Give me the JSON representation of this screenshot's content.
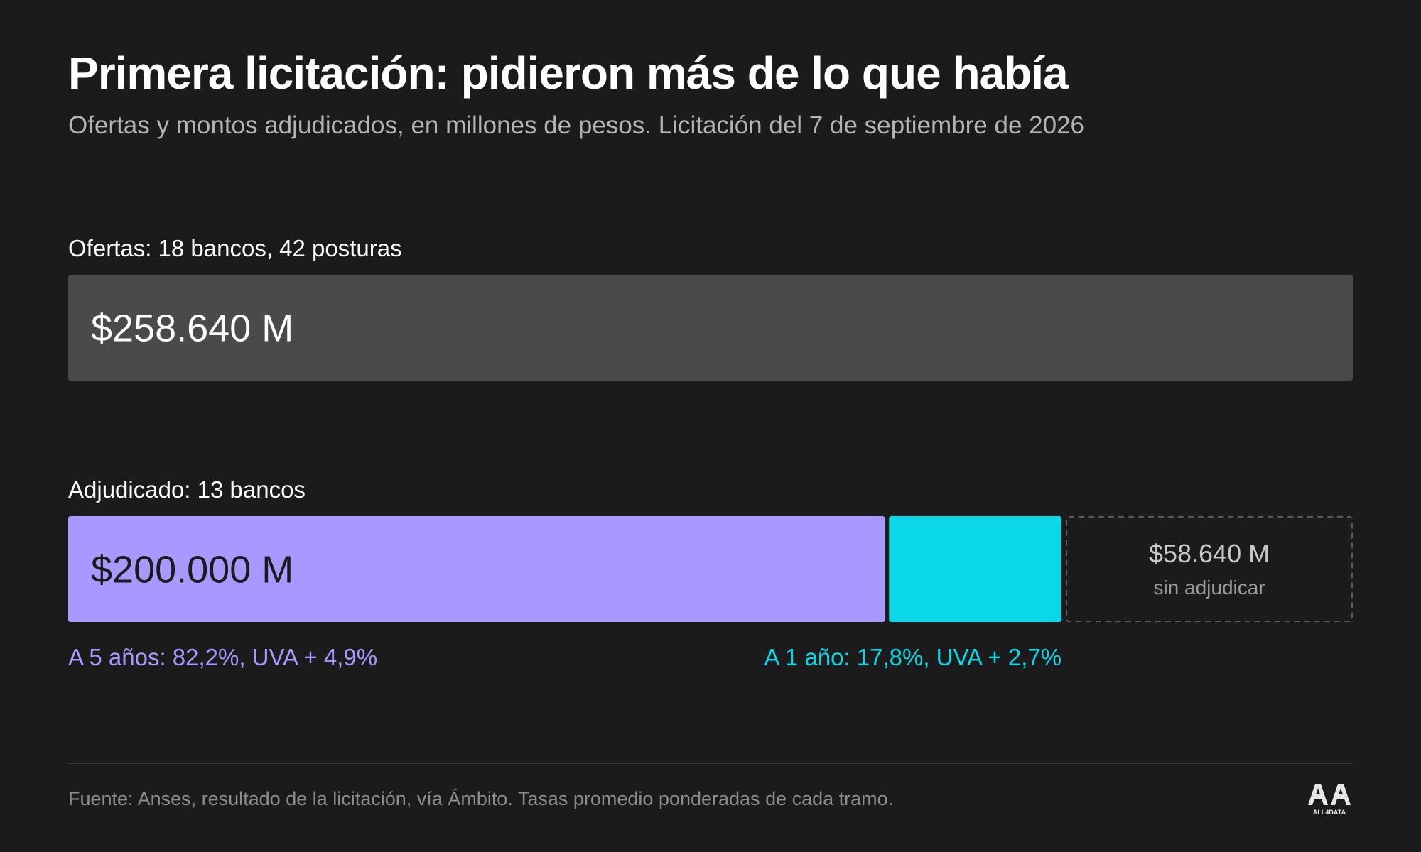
{
  "title": "Primera licitación: pidieron más de lo que había",
  "subtitle": "Ofertas y montos adjudicados, en millones de pesos. Licitación del 7 de septiembre de 2026",
  "chart_data": {
    "type": "bar",
    "title": "Primera licitación: pidieron más de lo que había",
    "subtitle": "Ofertas y montos adjudicados, en millones de pesos. Licitación del 7 de septiembre de 2026",
    "unit": "millones de pesos",
    "offers": {
      "label": "Ofertas: 18 bancos, 42 posturas",
      "value": 258640,
      "value_label": "$258.640 M",
      "color": "#4a4a4a"
    },
    "awarded": {
      "label": "Adjudicado: 13 bancos",
      "value": 200000,
      "value_label": "$200.000 M",
      "segments": [
        {
          "share": 82.2,
          "annotation": "A 5 años: 82,2%, UVA + 4,9%",
          "color": "#a898ff"
        },
        {
          "share": 17.8,
          "annotation": "A 1 año: 17,8%, UVA + 2,7%",
          "color": "#0ad8e6"
        }
      ]
    },
    "unawarded": {
      "value": 58640,
      "value_label": "$58.640 M",
      "note": "sin adjudicar",
      "color": "#3a3a3a"
    }
  },
  "footer": {
    "source": "Fuente: Anses, resultado de la licitación, vía Ámbito. Tasas promedio ponderadas de cada tramo.",
    "logo_text": "ALL4DATA"
  },
  "colors": {
    "background": "#1b1b1b",
    "text": "#ffffff",
    "muted": "#b4b4b4"
  }
}
